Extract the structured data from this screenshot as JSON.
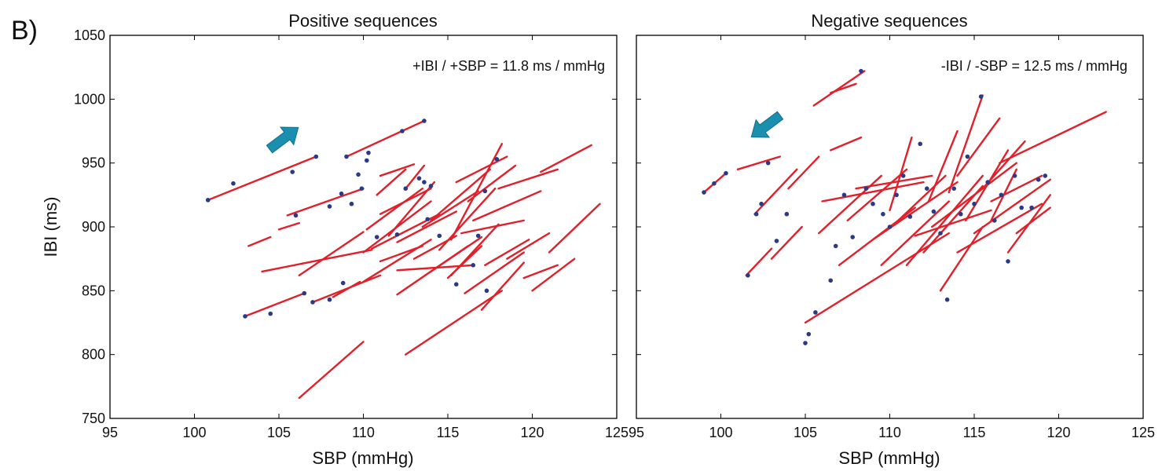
{
  "panel_label": "B)",
  "colors": {
    "segment": "#e0202a",
    "marker": "#2a3a86",
    "arrow": "#1b8fb0",
    "frame": "#000000"
  },
  "chart_data": [
    {
      "type": "line",
      "title": "Positive sequences",
      "xlabel": "SBP (mmHg)",
      "ylabel": "IBI (ms)",
      "xlim": [
        95,
        125
      ],
      "ylim": [
        750,
        1050
      ],
      "xticks": [
        95,
        100,
        105,
        110,
        115,
        120,
        125
      ],
      "yticks": [
        750,
        800,
        850,
        900,
        950,
        1000,
        1050
      ],
      "annotation": "+IBI / +SBP = 11.8 ms / mmHg",
      "arrow_direction": "up-right",
      "grid": false,
      "segments": [
        [
          [
            100.8,
            921
          ],
          [
            107.2,
            955
          ]
        ],
        [
          [
            103.0,
            830
          ],
          [
            106.5,
            848
          ]
        ],
        [
          [
            109.0,
            955
          ],
          [
            113.6,
            983
          ]
        ],
        [
          [
            105.5,
            909
          ],
          [
            110.0,
            930
          ]
        ],
        [
          [
            106.2,
            766
          ],
          [
            110.0,
            810
          ]
        ],
        [
          [
            107.0,
            841
          ],
          [
            111.0,
            862
          ]
        ],
        [
          [
            103.2,
            885
          ],
          [
            104.5,
            892
          ]
        ],
        [
          [
            105.0,
            898
          ],
          [
            106.2,
            903
          ]
        ],
        [
          [
            104.0,
            865
          ],
          [
            110.5,
            882
          ]
        ],
        [
          [
            106.2,
            862
          ],
          [
            110.0,
            896
          ]
        ],
        [
          [
            108.2,
            845
          ],
          [
            109.8,
            857
          ]
        ],
        [
          [
            110.0,
            880
          ],
          [
            114.0,
            920
          ]
        ],
        [
          [
            110.2,
            898
          ],
          [
            113.5,
            930
          ]
        ],
        [
          [
            110.5,
            883
          ],
          [
            114.5,
            910
          ]
        ],
        [
          [
            110.0,
            857
          ],
          [
            114.0,
            890
          ]
        ],
        [
          [
            110.8,
            925
          ],
          [
            112.5,
            945
          ]
        ],
        [
          [
            111.0,
            940
          ],
          [
            113.0,
            949
          ]
        ],
        [
          [
            111.5,
            893
          ],
          [
            114.2,
            935
          ]
        ],
        [
          [
            111.0,
            873
          ],
          [
            113.5,
            885
          ]
        ],
        [
          [
            111.0,
            910
          ],
          [
            114.0,
            930
          ]
        ],
        [
          [
            112.0,
            888
          ],
          [
            115.5,
            912
          ]
        ],
        [
          [
            112.5,
            930
          ],
          [
            113.6,
            948
          ]
        ],
        [
          [
            112.0,
            847
          ],
          [
            116.2,
            885
          ]
        ],
        [
          [
            112.0,
            866
          ],
          [
            116.5,
            870
          ]
        ],
        [
          [
            112.5,
            800
          ],
          [
            118.2,
            850
          ]
        ],
        [
          [
            113.0,
            875
          ],
          [
            115.5,
            893
          ]
        ],
        [
          [
            113.5,
            900
          ],
          [
            116.8,
            928
          ]
        ],
        [
          [
            114.0,
            865
          ],
          [
            117.0,
            892
          ]
        ],
        [
          [
            114.0,
            905
          ],
          [
            117.5,
            945
          ]
        ],
        [
          [
            114.5,
            882
          ],
          [
            117.8,
            930
          ]
        ],
        [
          [
            115.0,
            860
          ],
          [
            117.0,
            885
          ]
        ],
        [
          [
            115.2,
            890
          ],
          [
            118.2,
            965
          ]
        ],
        [
          [
            115.2,
            862
          ],
          [
            118.0,
            902
          ]
        ],
        [
          [
            115.5,
            935
          ],
          [
            118.5,
            955
          ]
        ],
        [
          [
            115.8,
            895
          ],
          [
            119.5,
            905
          ]
        ],
        [
          [
            116.2,
            920
          ],
          [
            119.0,
            948
          ]
        ],
        [
          [
            116.0,
            848
          ],
          [
            119.5,
            880
          ]
        ],
        [
          [
            116.5,
            905
          ],
          [
            120.5,
            928
          ]
        ],
        [
          [
            117.0,
            835
          ],
          [
            119.5,
            872
          ]
        ],
        [
          [
            117.2,
            870
          ],
          [
            119.8,
            890
          ]
        ],
        [
          [
            118.0,
            930
          ],
          [
            121.5,
            945
          ]
        ],
        [
          [
            118.5,
            875
          ],
          [
            121.0,
            895
          ]
        ],
        [
          [
            119.5,
            860
          ],
          [
            121.5,
            870
          ]
        ],
        [
          [
            120.0,
            850
          ],
          [
            122.5,
            875
          ]
        ],
        [
          [
            120.5,
            943
          ],
          [
            123.5,
            964
          ]
        ],
        [
          [
            121.0,
            880
          ],
          [
            124.0,
            918
          ]
        ]
      ],
      "markers": [
        [
          100.8,
          921
        ],
        [
          102.3,
          934
        ],
        [
          105.8,
          943
        ],
        [
          107.2,
          955
        ],
        [
          103.0,
          830
        ],
        [
          104.5,
          832
        ],
        [
          106.5,
          848
        ],
        [
          109.0,
          955
        ],
        [
          110.3,
          958
        ],
        [
          112.3,
          975
        ],
        [
          113.6,
          983
        ],
        [
          106.0,
          909
        ],
        [
          108.0,
          916
        ],
        [
          108.7,
          926
        ],
        [
          109.9,
          930
        ],
        [
          110.2,
          952
        ],
        [
          109.7,
          941
        ],
        [
          109.3,
          918
        ],
        [
          107.0,
          841
        ],
        [
          108.0,
          843
        ],
        [
          108.8,
          856
        ],
        [
          110.8,
          892
        ],
        [
          112.5,
          930
        ],
        [
          113.3,
          938
        ],
        [
          113.6,
          935
        ],
        [
          114.0,
          932
        ],
        [
          112.0,
          894
        ],
        [
          116.8,
          893
        ],
        [
          117.2,
          928
        ],
        [
          117.9,
          953
        ],
        [
          116.5,
          870
        ],
        [
          117.3,
          850
        ],
        [
          115.5,
          855
        ],
        [
          113.8,
          906
        ],
        [
          114.5,
          893
        ]
      ]
    },
    {
      "type": "line",
      "title": "Negative sequences",
      "xlabel": "SBP (mmHg)",
      "ylabel": "",
      "xlim": [
        95,
        125
      ],
      "ylim": [
        750,
        1050
      ],
      "xticks": [
        95,
        100,
        105,
        110,
        115,
        120,
        125
      ],
      "yticks": [
        750,
        800,
        850,
        900,
        950,
        1000,
        1050
      ],
      "annotation": "-IBI / -SBP = 12.5 ms / mmHg",
      "arrow_direction": "down-left",
      "grid": false,
      "segments": [
        [
          [
            99.0,
            927
          ],
          [
            100.3,
            942
          ]
        ],
        [
          [
            101.0,
            945
          ],
          [
            103.5,
            955
          ]
        ],
        [
          [
            101.5,
            862
          ],
          [
            103.0,
            883
          ]
        ],
        [
          [
            102.0,
            910
          ],
          [
            104.5,
            945
          ]
        ],
        [
          [
            103.0,
            875
          ],
          [
            104.8,
            900
          ]
        ],
        [
          [
            104.0,
            930
          ],
          [
            105.8,
            955
          ]
        ],
        [
          [
            105.0,
            825
          ],
          [
            113.5,
            895
          ]
        ],
        [
          [
            105.5,
            995
          ],
          [
            108.5,
            1022
          ]
        ],
        [
          [
            105.8,
            895
          ],
          [
            109.5,
            940
          ]
        ],
        [
          [
            106.5,
            1005
          ],
          [
            108.0,
            1012
          ]
        ],
        [
          [
            106.0,
            920
          ],
          [
            112.0,
            935
          ]
        ],
        [
          [
            106.5,
            960
          ],
          [
            108.3,
            970
          ]
        ],
        [
          [
            107.0,
            870
          ],
          [
            111.5,
            915
          ]
        ],
        [
          [
            107.5,
            905
          ],
          [
            111.0,
            945
          ]
        ],
        [
          [
            108.0,
            930
          ],
          [
            112.5,
            940
          ]
        ],
        [
          [
            109.0,
            890
          ],
          [
            114.0,
            935
          ]
        ],
        [
          [
            109.5,
            870
          ],
          [
            113.5,
            920
          ]
        ],
        [
          [
            110.0,
            913
          ],
          [
            111.3,
            970
          ]
        ],
        [
          [
            110.5,
            905
          ],
          [
            113.3,
            940
          ]
        ],
        [
          [
            111.0,
            870
          ],
          [
            115.5,
            940
          ]
        ],
        [
          [
            111.5,
            893
          ],
          [
            116.0,
            913
          ]
        ],
        [
          [
            112.0,
            880
          ],
          [
            115.5,
            932
          ]
        ],
        [
          [
            112.3,
            920
          ],
          [
            114.0,
            975
          ]
        ],
        [
          [
            112.5,
            900
          ],
          [
            117.5,
            950
          ]
        ],
        [
          [
            113.0,
            850
          ],
          [
            115.5,
            900
          ]
        ],
        [
          [
            113.5,
            927
          ],
          [
            115.5,
            1003
          ]
        ],
        [
          [
            114.0,
            880
          ],
          [
            119.0,
            918
          ]
        ],
        [
          [
            114.5,
            905
          ],
          [
            117.0,
            960
          ]
        ],
        [
          [
            114.0,
            940
          ],
          [
            116.5,
            985
          ]
        ],
        [
          [
            115.0,
            895
          ],
          [
            119.5,
            937
          ]
        ],
        [
          [
            115.5,
            930
          ],
          [
            118.0,
            967
          ]
        ],
        [
          [
            116.0,
            920
          ],
          [
            119.0,
            940
          ]
        ],
        [
          [
            116.5,
            950
          ],
          [
            122.8,
            990
          ]
        ],
        [
          [
            117.0,
            880
          ],
          [
            119.5,
            925
          ]
        ],
        [
          [
            117.5,
            895
          ],
          [
            119.5,
            915
          ]
        ],
        [
          [
            116.0,
            905
          ],
          [
            117.5,
            945
          ]
        ]
      ],
      "markers": [
        [
          99.0,
          927
        ],
        [
          99.6,
          934
        ],
        [
          100.3,
          942
        ],
        [
          101.6,
          862
        ],
        [
          102.1,
          910
        ],
        [
          102.4,
          918
        ],
        [
          102.8,
          950
        ],
        [
          103.3,
          889
        ],
        [
          103.9,
          910
        ],
        [
          105.0,
          809
        ],
        [
          105.2,
          816
        ],
        [
          105.6,
          833
        ],
        [
          106.5,
          858
        ],
        [
          106.8,
          885
        ],
        [
          107.3,
          925
        ],
        [
          107.8,
          892
        ],
        [
          108.3,
          1022
        ],
        [
          108.6,
          930
        ],
        [
          109.0,
          918
        ],
        [
          109.6,
          910
        ],
        [
          110.0,
          900
        ],
        [
          110.4,
          925
        ],
        [
          110.8,
          940
        ],
        [
          111.2,
          908
        ],
        [
          111.8,
          965
        ],
        [
          112.2,
          930
        ],
        [
          112.6,
          912
        ],
        [
          113.0,
          895
        ],
        [
          113.4,
          843
        ],
        [
          113.8,
          930
        ],
        [
          114.2,
          910
        ],
        [
          114.6,
          955
        ],
        [
          115.0,
          918
        ],
        [
          115.4,
          1002
        ],
        [
          115.8,
          935
        ],
        [
          116.2,
          905
        ],
        [
          116.6,
          925
        ],
        [
          117.0,
          873
        ],
        [
          117.4,
          940
        ],
        [
          117.8,
          915
        ],
        [
          118.4,
          915
        ],
        [
          118.8,
          937
        ],
        [
          119.2,
          940
        ]
      ]
    }
  ]
}
